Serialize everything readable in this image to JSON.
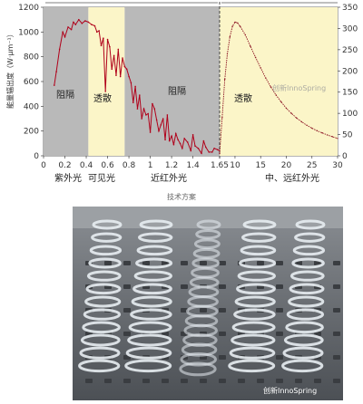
{
  "chart_data": {
    "type": "line",
    "ylabel": "能量辐出度（W·μm⁻¹）",
    "left_panel": {
      "x_ticks": [
        "0",
        "0.2",
        "0.4",
        "0.6",
        "0.8",
        "1",
        "1.2",
        "1.4",
        "1.65"
      ],
      "y_ticks": [
        "0",
        "200",
        "400",
        "600",
        "800",
        "1000",
        "1200"
      ],
      "xlim": [
        0,
        1.65
      ],
      "ylim": [
        0,
        1200
      ],
      "regions": [
        {
          "label": "阻隔",
          "x0": 0,
          "x1": 0.42,
          "shade": "gray"
        },
        {
          "label": "透散",
          "x0": 0.42,
          "x1": 0.76,
          "shade": "yellow"
        },
        {
          "label": "阻隔",
          "x0": 0.76,
          "x1": 1.65,
          "shade": "gray"
        }
      ],
      "series": [
        {
          "x": [
            0.1,
            0.12,
            0.15,
            0.18,
            0.2,
            0.23,
            0.26,
            0.28,
            0.3,
            0.33,
            0.36,
            0.39,
            0.42,
            0.45,
            0.48,
            0.5,
            0.52,
            0.54,
            0.56,
            0.58,
            0.6,
            0.62,
            0.64,
            0.66,
            0.68,
            0.7,
            0.72,
            0.74,
            0.76,
            0.78,
            0.8,
            0.82,
            0.84,
            0.86,
            0.88,
            0.9,
            0.92,
            0.94,
            0.96,
            0.98,
            1.0,
            1.02,
            1.04,
            1.06,
            1.08,
            1.1,
            1.12,
            1.14,
            1.16,
            1.18,
            1.2,
            1.22,
            1.24,
            1.26,
            1.28,
            1.3,
            1.32,
            1.35,
            1.38,
            1.4,
            1.42,
            1.45,
            1.48,
            1.5,
            1.52,
            1.55,
            1.58,
            1.6,
            1.63,
            1.65
          ],
          "y": [
            570,
            680,
            860,
            1000,
            960,
            1040,
            1020,
            1080,
            1060,
            1100,
            1070,
            1090,
            1080,
            1060,
            1050,
            1000,
            1010,
            890,
            950,
            520,
            940,
            880,
            700,
            810,
            650,
            860,
            640,
            790,
            720,
            700,
            640,
            590,
            430,
            560,
            380,
            490,
            300,
            380,
            330,
            340,
            190,
            420,
            380,
            290,
            200,
            250,
            300,
            130,
            330,
            120,
            160,
            90,
            180,
            130,
            100,
            60,
            140,
            110,
            40,
            170,
            80,
            60,
            20,
            120,
            70,
            30,
            30,
            60,
            50,
            40
          ]
        }
      ]
    },
    "right_panel": {
      "x_ticks": [
        "10",
        "15",
        "20",
        "25",
        "30"
      ],
      "y_ticks": [
        "0",
        "50",
        "100",
        "150",
        "200",
        "250",
        "300",
        "350"
      ],
      "xlim": [
        7,
        30
      ],
      "ylim": [
        0,
        350
      ],
      "regions": [
        {
          "label": "透散",
          "x0": 7,
          "x1": 30,
          "shade": "yellow"
        }
      ],
      "series": [
        {
          "x": [
            7.0,
            7.5,
            8,
            8.5,
            9,
            9.5,
            10,
            10.5,
            11,
            12,
            13,
            14,
            15,
            16,
            17,
            18,
            19,
            20,
            21,
            22,
            23,
            24,
            25,
            26,
            27,
            28,
            29,
            30
          ],
          "y": [
            5,
            90,
            180,
            240,
            280,
            305,
            315,
            313,
            305,
            285,
            258,
            232,
            207,
            183,
            162,
            143,
            127,
            112,
            100,
            89,
            80,
            72,
            65,
            59,
            54,
            49,
            45,
            41
          ]
        }
      ]
    },
    "band_labels": [
      "紫外光",
      "可见光",
      "近红外光",
      "中、远红外光"
    ]
  },
  "caption": "技术方案",
  "watermarks": {
    "chart": "创新InnoSpring",
    "photo": "创新InnoSpring"
  }
}
